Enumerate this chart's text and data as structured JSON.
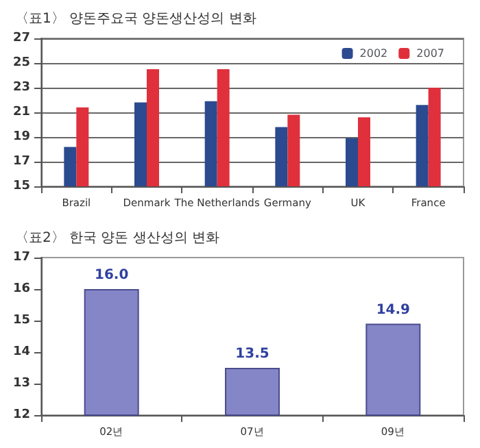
{
  "chart_data": [
    {
      "type": "bar",
      "title": "〈표1〉 양돈주요국 양돈생산성의 변화",
      "categories": [
        "Brazil",
        "Denmark",
        "The Netherlands",
        "Germany",
        "UK",
        "France"
      ],
      "series": [
        {
          "name": "2002",
          "color": "#2b4a8f",
          "values": [
            18.2,
            21.8,
            21.9,
            19.8,
            18.9,
            21.6
          ]
        },
        {
          "name": "2007",
          "color": "#e0303c",
          "values": [
            21.4,
            24.5,
            24.5,
            20.8,
            20.6,
            23.0
          ]
        }
      ],
      "ylim": [
        15,
        27
      ],
      "yticks": [
        15,
        17,
        19,
        21,
        23,
        25,
        27
      ],
      "grid": "y",
      "legend": "top right"
    },
    {
      "type": "bar",
      "title": "〈표2〉 한국 양돈 생산성의 변화",
      "categories": [
        "02년",
        "07년",
        "09년"
      ],
      "values": [
        16.0,
        13.5,
        14.9
      ],
      "value_labels": [
        "16.0",
        "13.5",
        "14.9"
      ],
      "color": "#8486c8",
      "ylim": [
        12,
        17
      ],
      "yticks": [
        12,
        13,
        14,
        15,
        16,
        17
      ],
      "grid": false
    }
  ]
}
